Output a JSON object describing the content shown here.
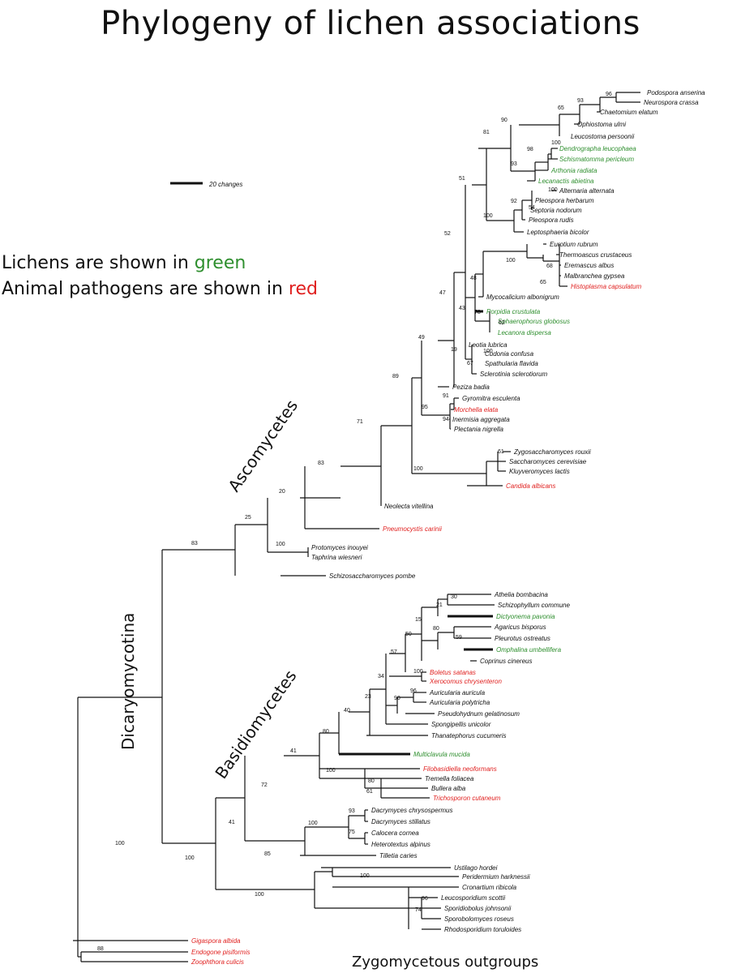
{
  "title": "Phylogeny of lichen associations",
  "legend": {
    "line1_prefix": "Lichens are shown in ",
    "line1_color_word": "green",
    "line2_prefix": "Animal pathogens are shown in ",
    "line2_color_word": "red"
  },
  "scale_bar_label": "20 changes",
  "clade_labels": {
    "ascomycetes": "Ascomycetes",
    "basidiomycetes": "Basidiomycetes",
    "dicaryomycotina": "Dicaryomycotina",
    "zygomycetous": "Zygomycetous outgroups"
  },
  "colors": {
    "lichen": "#2f8f2f",
    "pathogen": "#e0201f",
    "normal": "#111111"
  },
  "bootstrap": [
    "96",
    "93",
    "65",
    "90",
    "81",
    "100",
    "98",
    "93",
    "51",
    "100",
    "92",
    "54",
    "100",
    "52",
    "100",
    "68",
    "65",
    "48",
    "47",
    "78",
    "62",
    "43",
    "49",
    "100",
    "67",
    "19",
    "89",
    "91",
    "95",
    "94",
    "71",
    "61",
    "100",
    "83",
    "20",
    "25",
    "100",
    "83",
    "30",
    "21",
    "15",
    "50",
    "80",
    "59",
    "57",
    "100",
    "34",
    "96",
    "90",
    "23",
    "40",
    "80",
    "41",
    "100",
    "80",
    "61",
    "72",
    "93",
    "100",
    "75",
    "41",
    "85",
    "100",
    "100",
    "100",
    "96",
    "74",
    "100",
    "88"
  ],
  "taxa": [
    {
      "name": "Podospora anserina",
      "group": "normal"
    },
    {
      "name": "Neurospora crassa",
      "group": "normal"
    },
    {
      "name": "Chaetomium elatum",
      "group": "normal"
    },
    {
      "name": "Ophiostoma ulmi",
      "group": "normal"
    },
    {
      "name": "Leucostoma persoonii",
      "group": "normal"
    },
    {
      "name": "Dendrographa leucophaea",
      "group": "lichen"
    },
    {
      "name": "Schismatomma pericleum",
      "group": "lichen"
    },
    {
      "name": "Arthonia radiata",
      "group": "lichen"
    },
    {
      "name": "Lecanactis abietina",
      "group": "lichen"
    },
    {
      "name": "Alternaria alternata",
      "group": "normal"
    },
    {
      "name": "Pleospora herbarum",
      "group": "normal"
    },
    {
      "name": "Septoria nodorum",
      "group": "normal"
    },
    {
      "name": "Pleospora rudis",
      "group": "normal"
    },
    {
      "name": "Leptosphaeria bicolor",
      "group": "normal"
    },
    {
      "name": "Eurotium rubrum",
      "group": "normal"
    },
    {
      "name": "Thermoascus crustaceus",
      "group": "normal"
    },
    {
      "name": "Eremascus albus",
      "group": "normal"
    },
    {
      "name": "Malbranchea gypsea",
      "group": "normal"
    },
    {
      "name": "Histoplasma capsulatum",
      "group": "pathogen"
    },
    {
      "name": "Mycocalicium albonigrum",
      "group": "normal"
    },
    {
      "name": "Porpidia crustulata",
      "group": "lichen"
    },
    {
      "name": "Sphaerophorus globosus",
      "group": "lichen"
    },
    {
      "name": "Lecanora dispersa",
      "group": "lichen"
    },
    {
      "name": "Leotia lubrica",
      "group": "normal"
    },
    {
      "name": "Cudonia confusa",
      "group": "normal"
    },
    {
      "name": "Spathularia flavida",
      "group": "normal"
    },
    {
      "name": "Sclerotinia sclerotiorum",
      "group": "normal"
    },
    {
      "name": "Peziza badia",
      "group": "normal"
    },
    {
      "name": "Gyromitra esculenta",
      "group": "normal"
    },
    {
      "name": "Morchella elata",
      "group": "pathogen"
    },
    {
      "name": "Inermisia aggregata",
      "group": "normal"
    },
    {
      "name": "Plectania nigrella",
      "group": "normal"
    },
    {
      "name": "Zygosaccharomyces rouxii",
      "group": "normal"
    },
    {
      "name": "Saccharomyces cerevisiae",
      "group": "normal"
    },
    {
      "name": "Kluyveromyces lactis",
      "group": "normal"
    },
    {
      "name": "Candida albicans",
      "group": "pathogen"
    },
    {
      "name": "Neolecta vitellina",
      "group": "normal"
    },
    {
      "name": "Pneumocystis carinii",
      "group": "pathogen"
    },
    {
      "name": "Protomyces inouyei",
      "group": "normal"
    },
    {
      "name": "Taphrina wiesneri",
      "group": "normal"
    },
    {
      "name": "Schizosaccharomyces pombe",
      "group": "normal"
    },
    {
      "name": "Athelia bombacina",
      "group": "normal"
    },
    {
      "name": "Schizophyllum commune",
      "group": "normal"
    },
    {
      "name": "Dictyonema pavonia",
      "group": "lichen"
    },
    {
      "name": "Agaricus bisporus",
      "group": "normal"
    },
    {
      "name": "Pleurotus ostreatus",
      "group": "normal"
    },
    {
      "name": "Omphalina umbellifera",
      "group": "lichen"
    },
    {
      "name": "Coprinus cinereus",
      "group": "normal"
    },
    {
      "name": "Boletus satanas",
      "group": "pathogen"
    },
    {
      "name": "Xerocomus chrysenteron",
      "group": "pathogen"
    },
    {
      "name": "Auricularia auricula",
      "group": "normal"
    },
    {
      "name": "Auricularia polytricha",
      "group": "normal"
    },
    {
      "name": "Pseudohydnum gelatinosum",
      "group": "normal"
    },
    {
      "name": "Spongipellis unicolor",
      "group": "normal"
    },
    {
      "name": "Thanatephorus cucumeris",
      "group": "normal"
    },
    {
      "name": "Multiclavula mucida",
      "group": "lichen"
    },
    {
      "name": "Filobasidiella neoformans",
      "group": "pathogen"
    },
    {
      "name": "Tremella foliacea",
      "group": "normal"
    },
    {
      "name": "Bullera alba",
      "group": "normal"
    },
    {
      "name": "Trichosporon cutaneum",
      "group": "pathogen"
    },
    {
      "name": "Dacrymyces chrysospermus",
      "group": "normal"
    },
    {
      "name": "Dacrymyces stillatus",
      "group": "normal"
    },
    {
      "name": "Calocera cornea",
      "group": "normal"
    },
    {
      "name": "Heterotextus alpinus",
      "group": "normal"
    },
    {
      "name": "Tilletia caries",
      "group": "normal"
    },
    {
      "name": "Ustilago hordei",
      "group": "normal"
    },
    {
      "name": "Peridermium harknessii",
      "group": "normal"
    },
    {
      "name": "Cronartium ribicola",
      "group": "normal"
    },
    {
      "name": "Leucosporidium scottii",
      "group": "normal"
    },
    {
      "name": "Sporidiobolus johnsonii",
      "group": "normal"
    },
    {
      "name": "Sporobolomyces roseus",
      "group": "normal"
    },
    {
      "name": "Rhodosporidium toruloides",
      "group": "normal"
    },
    {
      "name": "Gigaspora albida",
      "group": "pathogen"
    },
    {
      "name": "Endogone pisiformis",
      "group": "pathogen"
    },
    {
      "name": "Zoophthora culicis",
      "group": "pathogen"
    }
  ]
}
